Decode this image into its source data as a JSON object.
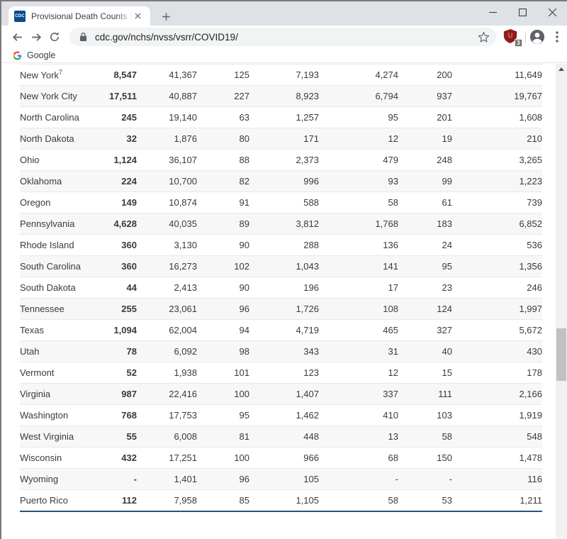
{
  "browser": {
    "favicon_label": "CDC",
    "tab_title": "Provisional Death Counts for Cor",
    "url": "cdc.gov/nchs/nvss/vsrr/COVID19/",
    "bookmark_label": "Google",
    "extension_badge": "3"
  },
  "table": {
    "rows": [
      {
        "state": "New York",
        "sup": "7",
        "values": [
          "8,547",
          "41,367",
          "125",
          "7,193",
          "4,274",
          "200",
          "11,649"
        ]
      },
      {
        "state": "New York City",
        "values": [
          "17,511",
          "40,887",
          "227",
          "8,923",
          "6,794",
          "937",
          "19,767"
        ]
      },
      {
        "state": "North Carolina",
        "values": [
          "245",
          "19,140",
          "63",
          "1,257",
          "95",
          "201",
          "1,608"
        ]
      },
      {
        "state": "North Dakota",
        "values": [
          "32",
          "1,876",
          "80",
          "171",
          "12",
          "19",
          "210"
        ]
      },
      {
        "state": "Ohio",
        "values": [
          "1,124",
          "36,107",
          "88",
          "2,373",
          "479",
          "248",
          "3,265"
        ]
      },
      {
        "state": "Oklahoma",
        "values": [
          "224",
          "10,700",
          "82",
          "996",
          "93",
          "99",
          "1,223"
        ]
      },
      {
        "state": "Oregon",
        "values": [
          "149",
          "10,874",
          "91",
          "588",
          "58",
          "61",
          "739"
        ]
      },
      {
        "state": "Pennsylvania",
        "values": [
          "4,628",
          "40,035",
          "89",
          "3,812",
          "1,768",
          "183",
          "6,852"
        ]
      },
      {
        "state": "Rhode Island",
        "values": [
          "360",
          "3,130",
          "90",
          "288",
          "136",
          "24",
          "536"
        ]
      },
      {
        "state": "South Carolina",
        "values": [
          "360",
          "16,273",
          "102",
          "1,043",
          "141",
          "95",
          "1,356"
        ]
      },
      {
        "state": "South Dakota",
        "values": [
          "44",
          "2,413",
          "90",
          "196",
          "17",
          "23",
          "246"
        ]
      },
      {
        "state": "Tennessee",
        "values": [
          "255",
          "23,061",
          "96",
          "1,726",
          "108",
          "124",
          "1,997"
        ]
      },
      {
        "state": "Texas",
        "values": [
          "1,094",
          "62,004",
          "94",
          "4,719",
          "465",
          "327",
          "5,672"
        ]
      },
      {
        "state": "Utah",
        "values": [
          "78",
          "6,092",
          "98",
          "343",
          "31",
          "40",
          "430"
        ]
      },
      {
        "state": "Vermont",
        "values": [
          "52",
          "1,938",
          "101",
          "123",
          "12",
          "15",
          "178"
        ]
      },
      {
        "state": "Virginia",
        "values": [
          "987",
          "22,416",
          "100",
          "1,407",
          "337",
          "111",
          "2,166"
        ]
      },
      {
        "state": "Washington",
        "values": [
          "768",
          "17,753",
          "95",
          "1,462",
          "410",
          "103",
          "1,919"
        ]
      },
      {
        "state": "West Virginia",
        "values": [
          "55",
          "6,008",
          "81",
          "448",
          "13",
          "58",
          "548"
        ]
      },
      {
        "state": "Wisconsin",
        "values": [
          "432",
          "17,251",
          "100",
          "966",
          "68",
          "150",
          "1,478"
        ]
      },
      {
        "state": "Wyoming",
        "values": [
          "-",
          "1,401",
          "96",
          "105",
          "-",
          "-",
          "116"
        ]
      },
      {
        "state": "Puerto Rico",
        "values": [
          "112",
          "7,958",
          "85",
          "1,105",
          "58",
          "53",
          "1,211"
        ]
      }
    ]
  },
  "colors": {
    "tabstrip_bg": "#dee1e6",
    "omnibox_bg": "#f1f3f4",
    "icon_gray": "#5f6368",
    "row_alt_bg": "#f7f7f7",
    "table_bottom_border": "#26547c",
    "scroll_track": "#f1f1f1",
    "scroll_thumb": "#c1c1c1",
    "favicon_blue": "#0a4a8f",
    "extension_red": "#8f1b1b"
  }
}
